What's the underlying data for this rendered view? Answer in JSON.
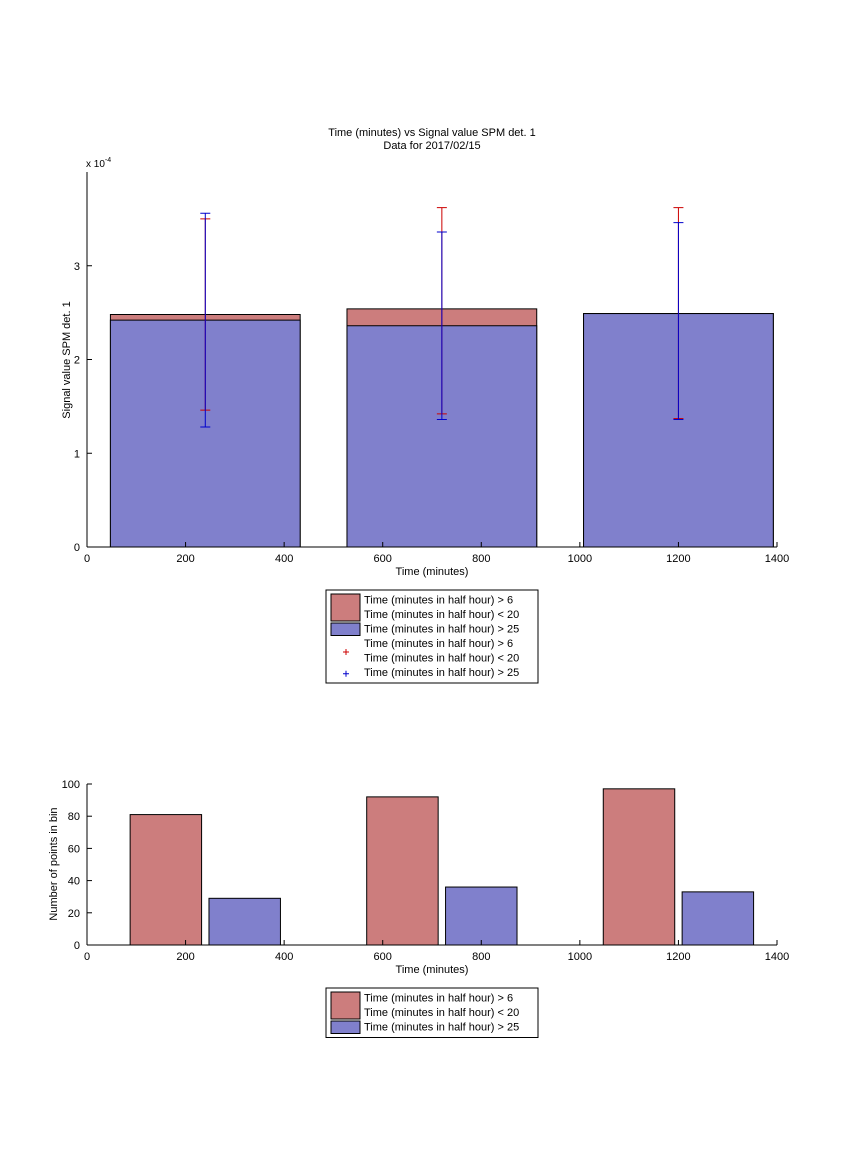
{
  "chart_data": [
    {
      "type": "bar",
      "title": "Time (minutes) vs Signal value SPM det. 1",
      "subtitle": "Data for 2017/02/15",
      "xlabel": "Time (minutes)",
      "ylabel": "Signal value SPM det. 1",
      "y_exponent_label": "x 10",
      "y_exponent": "-4",
      "xlim": [
        0,
        1400
      ],
      "ylim": [
        0,
        4
      ],
      "xticks": [
        0,
        200,
        400,
        600,
        800,
        1000,
        1200,
        1400
      ],
      "yticks": [
        0,
        1,
        2,
        3
      ],
      "x": [
        240,
        720,
        1200
      ],
      "bar_width": 385,
      "series": [
        {
          "name": "Time (minutes in half hour) > 6\nTime (minutes in half hour) < 20",
          "color": "#cc7d7d",
          "values": [
            2.48,
            2.54,
            2.49
          ],
          "errors": [
            [
              1.46,
              3.5
            ],
            [
              1.42,
              3.62
            ],
            [
              1.37,
              3.62
            ]
          ],
          "marker_color": "#cc0000"
        },
        {
          "name": "Time (minutes in half hour) > 25",
          "color": "#8080cc",
          "values": [
            2.42,
            2.36,
            2.49
          ],
          "errors": [
            [
              1.28,
              3.56
            ],
            [
              1.36,
              3.36
            ],
            [
              1.36,
              3.46
            ]
          ],
          "marker_color": "#0000cc"
        }
      ],
      "legend": [
        {
          "label": "Time (minutes in half hour) > 6",
          "label2": "Time (minutes in half hour) < 20",
          "kind": "patch",
          "color": "#cc7d7d"
        },
        {
          "label": "Time (minutes in half hour) > 25",
          "kind": "patch",
          "color": "#8080cc"
        },
        {
          "label": "Time (minutes in half hour) > 6",
          "label2": "Time (minutes in half hour) < 20",
          "kind": "marker",
          "color": "#cc0000"
        },
        {
          "label": "Time (minutes in half hour) > 25",
          "kind": "marker",
          "color": "#0000cc"
        }
      ],
      "legend_position": "below"
    },
    {
      "type": "bar",
      "xlabel": "Time (minutes)",
      "ylabel": "Number of points in bin",
      "xlim": [
        0,
        1400
      ],
      "ylim": [
        0,
        100
      ],
      "xticks": [
        0,
        200,
        400,
        600,
        800,
        1000,
        1200,
        1400
      ],
      "yticks": [
        0,
        20,
        40,
        60,
        80,
        100
      ],
      "series": [
        {
          "name": "Time (minutes in half hour) > 6\nTime (minutes in half hour) < 20",
          "color": "#cc7d7d",
          "x": [
            160,
            640,
            1120
          ],
          "width": 145,
          "values": [
            81,
            92,
            97
          ]
        },
        {
          "name": "Time (minutes in half hour) > 25",
          "color": "#8080cc",
          "x": [
            320,
            800,
            1280
          ],
          "width": 145,
          "values": [
            29,
            36,
            33
          ]
        }
      ],
      "legend": [
        {
          "label": "Time (minutes in half hour) > 6",
          "label2": "Time (minutes in half hour) < 20",
          "kind": "patch",
          "color": "#cc7d7d"
        },
        {
          "label": "Time (minutes in half hour) > 25",
          "kind": "patch",
          "color": "#8080cc"
        }
      ],
      "legend_position": "below"
    }
  ]
}
